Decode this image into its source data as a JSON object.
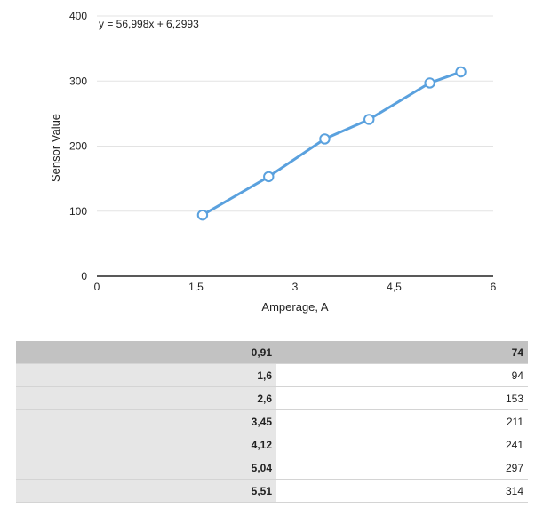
{
  "chart_data": {
    "type": "scatter",
    "xlabel": "Amperage, A",
    "ylabel": "Sensor Value",
    "xlim": [
      0,
      6
    ],
    "ylim": [
      0,
      400
    ],
    "xticks": [
      "0",
      "1,5",
      "3",
      "4,5",
      "6"
    ],
    "yticks": [
      "0",
      "100",
      "200",
      "300",
      "400"
    ],
    "grid": "horizontal",
    "points": [
      {
        "x": 1.6,
        "y": 94
      },
      {
        "x": 2.6,
        "y": 153
      },
      {
        "x": 3.45,
        "y": 211
      },
      {
        "x": 4.12,
        "y": 241
      },
      {
        "x": 5.04,
        "y": 297
      },
      {
        "x": 5.51,
        "y": 314
      }
    ],
    "trendline": {
      "equation": "y = 56,998x + 6,2993",
      "slope": 56.998,
      "intercept": 6.2993
    },
    "colors": {
      "series": "#5aa1de"
    }
  },
  "table": {
    "header": [
      "0,91",
      "74"
    ],
    "rows": [
      [
        "1,6",
        "94"
      ],
      [
        "2,6",
        "153"
      ],
      [
        "3,45",
        "211"
      ],
      [
        "4,12",
        "241"
      ],
      [
        "5,04",
        "297"
      ],
      [
        "5,51",
        "314"
      ]
    ]
  }
}
